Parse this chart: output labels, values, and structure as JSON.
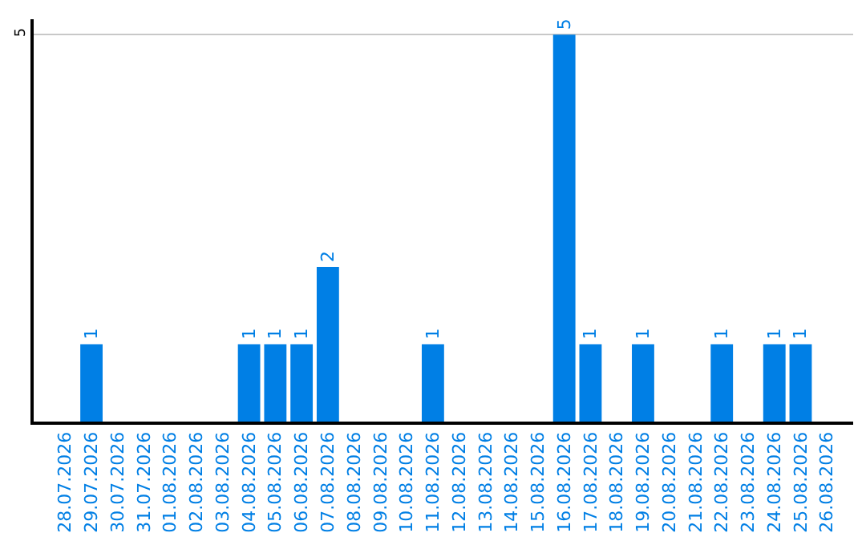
{
  "chart_data": {
    "type": "bar",
    "categories": [
      "28.07.2026",
      "29.07.2026",
      "30.07.2026",
      "31.07.2026",
      "01.08.2026",
      "02.08.2026",
      "03.08.2026",
      "04.08.2026",
      "05.08.2026",
      "06.08.2026",
      "07.08.2026",
      "08.08.2026",
      "09.08.2026",
      "10.08.2026",
      "11.08.2026",
      "12.08.2026",
      "13.08.2026",
      "14.08.2026",
      "15.08.2026",
      "16.08.2026",
      "17.08.2026",
      "18.08.2026",
      "19.08.2026",
      "20.08.2026",
      "21.08.2026",
      "22.08.2026",
      "23.08.2026",
      "24.08.2026",
      "25.08.2026",
      "26.08.2026"
    ],
    "values": [
      0,
      1,
      0,
      0,
      0,
      0,
      0,
      1,
      1,
      1,
      2,
      0,
      0,
      0,
      1,
      0,
      0,
      0,
      0,
      5,
      1,
      0,
      1,
      0,
      0,
      1,
      0,
      1,
      1,
      0
    ],
    "value_labels": [
      null,
      "1",
      null,
      null,
      null,
      null,
      null,
      "1",
      "1",
      "1",
      "2",
      null,
      null,
      null,
      "1",
      null,
      null,
      null,
      null,
      "5",
      "1",
      null,
      "1",
      null,
      null,
      "1",
      null,
      "1",
      "1",
      null
    ],
    "color": "#007fe5",
    "ylim": [
      0,
      5.2
    ],
    "yticks": [
      5
    ],
    "grid": "y",
    "legend": false
  }
}
